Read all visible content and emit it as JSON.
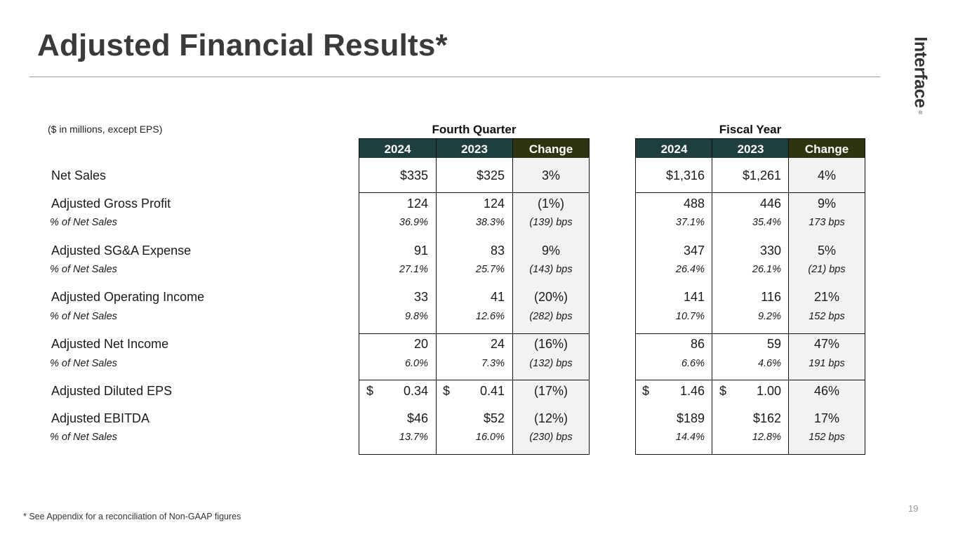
{
  "title": "Adjusted Financial Results*",
  "brand": {
    "logo_text": "Interface",
    "logo_mark": "®"
  },
  "units_note": "($ in millions, except EPS)",
  "groups": {
    "q4": "Fourth Quarter",
    "fy": "Fiscal Year"
  },
  "column_headers": {
    "y1": "2024",
    "y2": "2023",
    "change": "Change"
  },
  "currency_symbol": "$",
  "rows": [
    {
      "label": "Net Sales",
      "q4": [
        "$335",
        "$325",
        "3%"
      ],
      "fy": [
        "$1,316",
        "$1,261",
        "4%"
      ]
    },
    {
      "label": "Adjusted Gross Profit",
      "q4": [
        "124",
        "124",
        "(1%)"
      ],
      "fy": [
        "488",
        "446",
        "9%"
      ],
      "sub": {
        "label": "% of Net Sales",
        "q4": [
          "36.9%",
          "38.3%",
          "(139) bps"
        ],
        "fy": [
          "37.1%",
          "35.4%",
          "173 bps"
        ]
      }
    },
    {
      "label": "Adjusted SG&A Expense",
      "q4": [
        "91",
        "83",
        "9%"
      ],
      "fy": [
        "347",
        "330",
        "5%"
      ],
      "sub": {
        "label": "% of Net Sales",
        "q4": [
          "27.1%",
          "25.7%",
          "(143) bps"
        ],
        "fy": [
          "26.4%",
          "26.1%",
          "(21) bps"
        ]
      }
    },
    {
      "label": "Adjusted Operating Income",
      "q4": [
        "33",
        "41",
        "(20%)"
      ],
      "fy": [
        "141",
        "116",
        "21%"
      ],
      "sub": {
        "label": "% of Net Sales",
        "q4": [
          "9.8%",
          "12.6%",
          "(282) bps"
        ],
        "fy": [
          "10.7%",
          "9.2%",
          "152 bps"
        ]
      }
    },
    {
      "label": "Adjusted Net Income",
      "q4": [
        "20",
        "24",
        "(16%)"
      ],
      "fy": [
        "86",
        "59",
        "47%"
      ],
      "sub": {
        "label": "% of Net Sales",
        "q4": [
          "6.0%",
          "7.3%",
          "(132) bps"
        ],
        "fy": [
          "6.6%",
          "4.6%",
          "191 bps"
        ]
      }
    },
    {
      "label": "Adjusted Diluted EPS",
      "q4": [
        "0.34",
        "0.41",
        "(17%)"
      ],
      "fy": [
        "1.46",
        "1.00",
        "46%"
      ]
    },
    {
      "label": "Adjusted EBITDA",
      "q4": [
        "$46",
        "$52",
        "(12%)"
      ],
      "fy": [
        "$189",
        "$162",
        "17%"
      ],
      "sub": {
        "label": "% of Net Sales",
        "q4": [
          "13.7%",
          "16.0%",
          "(230) bps"
        ],
        "fy": [
          "14.4%",
          "12.8%",
          "152 bps"
        ]
      }
    }
  ],
  "footnote": "* See Appendix for a reconciliation of Non-GAAP figures",
  "page_number": "19",
  "colors": {
    "year_header": "#1f3f3e",
    "change_header": "#2f3410",
    "change_fill": "#f2f2f2"
  }
}
